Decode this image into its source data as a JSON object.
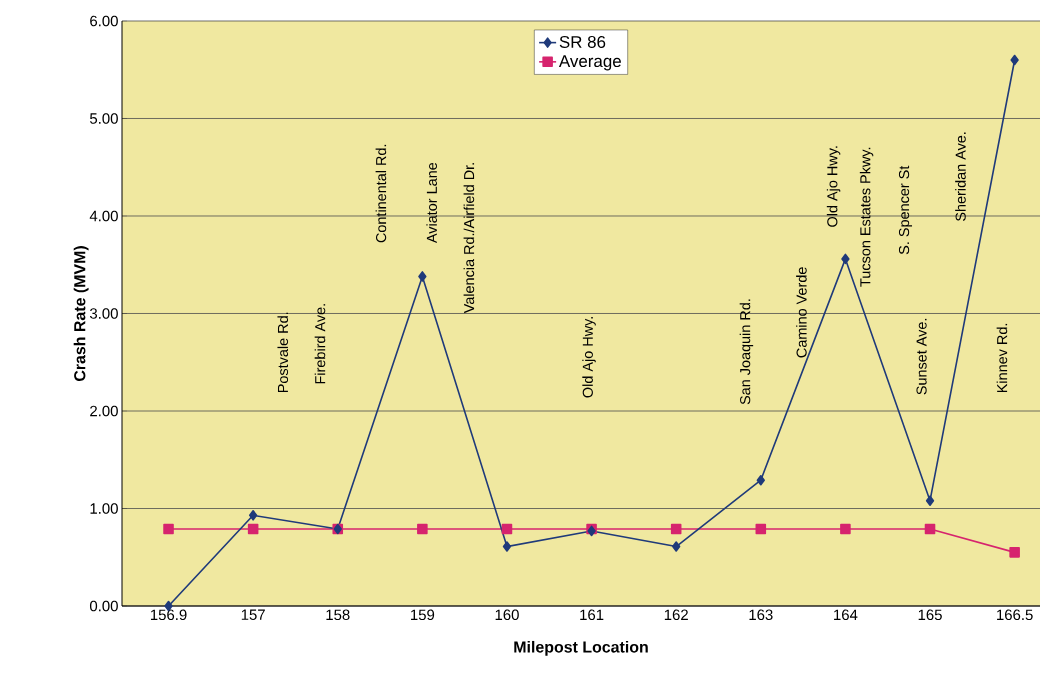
{
  "chart_data": {
    "type": "line",
    "xlabel": "Milepost Location",
    "ylabel": "Crash Rate  (MVM)",
    "categories": [
      "156.9",
      "157",
      "158",
      "159",
      "160",
      "161",
      "162",
      "163",
      "164",
      "165",
      "166.5"
    ],
    "series": [
      {
        "name": "SR 86",
        "color": "#1f3a7a",
        "marker": "diamond",
        "values": [
          0.0,
          0.93,
          0.79,
          3.38,
          0.61,
          0.77,
          0.61,
          1.29,
          3.56,
          1.08,
          5.6
        ]
      },
      {
        "name": "Average",
        "color": "#d6246e",
        "marker": "square",
        "values": [
          0.79,
          0.79,
          0.79,
          0.79,
          0.79,
          0.79,
          0.79,
          0.79,
          0.79,
          0.79,
          0.55
        ]
      }
    ],
    "ylim": [
      0,
      6
    ],
    "yticks": [
      {
        "value": 0,
        "label": "0.00"
      },
      {
        "value": 1,
        "label": "1.00"
      },
      {
        "value": 2,
        "label": "2.00"
      },
      {
        "value": 3,
        "label": "3.00"
      },
      {
        "value": 4,
        "label": "4.00"
      },
      {
        "value": 5,
        "label": "5.00"
      },
      {
        "value": 6,
        "label": "6.00"
      }
    ],
    "grid": "y",
    "legend": "top",
    "annotations": [
      "Postvale Rd.",
      "Firebird Ave.",
      "Continental Rd.",
      "Aviator Lane",
      "Valencia Rd./Airfield Dr.",
      "Old Ajo Hwy.",
      "San Joaquin Rd.",
      "Camino Verde",
      "Old Ajo Hwy.",
      "Tucson Estates Pkwy.",
      "S. Spencer St",
      "Sunset Ave.",
      "Sheridan Ave.",
      "Kinnev Rd."
    ]
  }
}
